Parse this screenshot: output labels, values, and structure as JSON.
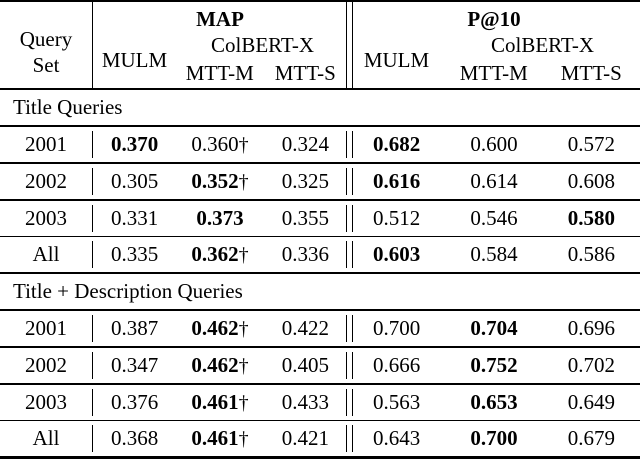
{
  "colors": {
    "background": "#ffffff",
    "text": "#000000",
    "rule": "#000000"
  },
  "table": {
    "query_set_header": {
      "line1": "Query",
      "line2": "Set"
    },
    "dagger_symbol": "†",
    "metric_groups": [
      {
        "metric": "MAP",
        "system1": "MULM",
        "system2": "ColBERT-X",
        "variants": [
          "MTT-M",
          "MTT-S"
        ]
      },
      {
        "metric": "P@10",
        "system1": "MULM",
        "system2": "ColBERT-X",
        "variants": [
          "MTT-M",
          "MTT-S"
        ]
      }
    ],
    "sections": [
      {
        "title": "Title Queries",
        "rows": [
          {
            "query_set": "2001",
            "map": {
              "mulm": {
                "v": "0.370",
                "bold": true
              },
              "mtt_m": {
                "v": "0.360",
                "dagger": true
              },
              "mtt_s": {
                "v": "0.324"
              }
            },
            "p10": {
              "mulm": {
                "v": "0.682",
                "bold": true
              },
              "mtt_m": {
                "v": "0.600"
              },
              "mtt_s": {
                "v": "0.572"
              }
            }
          },
          {
            "query_set": "2002",
            "map": {
              "mulm": {
                "v": "0.305"
              },
              "mtt_m": {
                "v": "0.352",
                "bold": true,
                "dagger": true
              },
              "mtt_s": {
                "v": "0.325"
              }
            },
            "p10": {
              "mulm": {
                "v": "0.616",
                "bold": true
              },
              "mtt_m": {
                "v": "0.614"
              },
              "mtt_s": {
                "v": "0.608"
              }
            }
          },
          {
            "query_set": "2003",
            "map": {
              "mulm": {
                "v": "0.331"
              },
              "mtt_m": {
                "v": "0.373",
                "bold": true
              },
              "mtt_s": {
                "v": "0.355"
              }
            },
            "p10": {
              "mulm": {
                "v": "0.512"
              },
              "mtt_m": {
                "v": "0.546"
              },
              "mtt_s": {
                "v": "0.580",
                "bold": true
              }
            }
          },
          {
            "query_set": "All",
            "map": {
              "mulm": {
                "v": "0.335"
              },
              "mtt_m": {
                "v": "0.362",
                "bold": true,
                "dagger": true
              },
              "mtt_s": {
                "v": "0.336"
              }
            },
            "p10": {
              "mulm": {
                "v": "0.603",
                "bold": true
              },
              "mtt_m": {
                "v": "0.584"
              },
              "mtt_s": {
                "v": "0.586"
              }
            }
          }
        ]
      },
      {
        "title": "Title + Description Queries",
        "rows": [
          {
            "query_set": "2001",
            "map": {
              "mulm": {
                "v": "0.387"
              },
              "mtt_m": {
                "v": "0.462",
                "bold": true,
                "dagger": true
              },
              "mtt_s": {
                "v": "0.422"
              }
            },
            "p10": {
              "mulm": {
                "v": "0.700"
              },
              "mtt_m": {
                "v": "0.704",
                "bold": true
              },
              "mtt_s": {
                "v": "0.696"
              }
            }
          },
          {
            "query_set": "2002",
            "map": {
              "mulm": {
                "v": "0.347"
              },
              "mtt_m": {
                "v": "0.462",
                "bold": true,
                "dagger": true
              },
              "mtt_s": {
                "v": "0.405"
              }
            },
            "p10": {
              "mulm": {
                "v": "0.666"
              },
              "mtt_m": {
                "v": "0.752",
                "bold": true
              },
              "mtt_s": {
                "v": "0.702"
              }
            }
          },
          {
            "query_set": "2003",
            "map": {
              "mulm": {
                "v": "0.376"
              },
              "mtt_m": {
                "v": "0.461",
                "bold": true,
                "dagger": true
              },
              "mtt_s": {
                "v": "0.433"
              }
            },
            "p10": {
              "mulm": {
                "v": "0.563"
              },
              "mtt_m": {
                "v": "0.653",
                "bold": true
              },
              "mtt_s": {
                "v": "0.649"
              }
            }
          },
          {
            "query_set": "All",
            "map": {
              "mulm": {
                "v": "0.368"
              },
              "mtt_m": {
                "v": "0.461",
                "bold": true,
                "dagger": true
              },
              "mtt_s": {
                "v": "0.421"
              }
            },
            "p10": {
              "mulm": {
                "v": "0.643"
              },
              "mtt_m": {
                "v": "0.700",
                "bold": true
              },
              "mtt_s": {
                "v": "0.679"
              }
            }
          }
        ]
      }
    ]
  }
}
